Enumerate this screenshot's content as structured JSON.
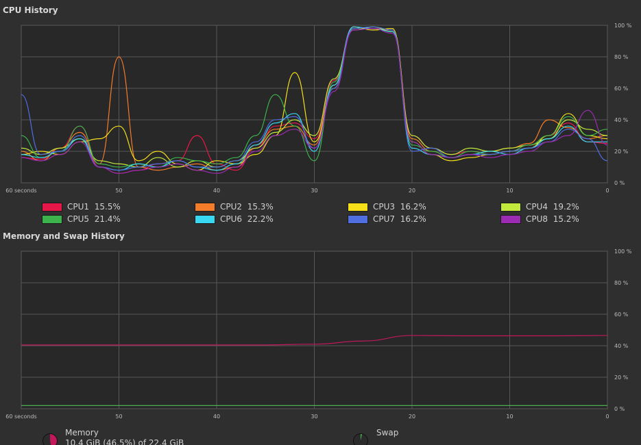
{
  "cpu": {
    "title": "CPU History",
    "x_ticks": [
      "60 seconds",
      "50",
      "40",
      "30",
      "20",
      "10",
      "0"
    ],
    "y_ticks": [
      "100 %",
      "80 %",
      "60 %",
      "40 %",
      "20 %",
      "0 %"
    ],
    "legend": [
      {
        "name": "CPU1",
        "value": "15.5%",
        "color": "#e8174a"
      },
      {
        "name": "CPU2",
        "value": "15.3%",
        "color": "#f57d29"
      },
      {
        "name": "CPU3",
        "value": "16.2%",
        "color": "#f7e01a"
      },
      {
        "name": "CPU4",
        "value": "19.2%",
        "color": "#c2ea3c"
      },
      {
        "name": "CPU5",
        "value": "21.4%",
        "color": "#3cb44b"
      },
      {
        "name": "CPU6",
        "value": "22.2%",
        "color": "#39d8f2"
      },
      {
        "name": "CPU7",
        "value": "16.2%",
        "color": "#4f6ee0"
      },
      {
        "name": "CPU8",
        "value": "15.2%",
        "color": "#9c2bb3"
      }
    ]
  },
  "memory": {
    "title": "Memory and Swap History",
    "x_ticks": [
      "60 seconds",
      "50",
      "40",
      "30",
      "20",
      "10",
      "0"
    ],
    "y_ticks": [
      "100 %",
      "80 %",
      "60 %",
      "40 %",
      "20 %",
      "0 %"
    ],
    "memory_label": "Memory",
    "memory_detail": "10.4 GiB (46.5%) of 22.4 GiB",
    "memory_color": "#c2185b",
    "swap_label": "Swap",
    "swap_color": "#4caf50"
  },
  "chart_data": [
    {
      "type": "line",
      "title": "CPU History",
      "x": [
        60,
        58,
        56,
        54,
        52,
        50,
        48,
        46,
        44,
        42,
        40,
        38,
        36,
        34,
        32,
        30,
        28,
        26,
        24,
        22,
        20,
        18,
        16,
        14,
        12,
        10,
        8,
        6,
        4,
        2,
        0
      ],
      "ylim": [
        0,
        100
      ],
      "xlim": [
        60,
        0
      ],
      "series": [
        {
          "name": "CPU1",
          "values": [
            16,
            15,
            22,
            36,
            10,
            6,
            8,
            12,
            14,
            30,
            12,
            8,
            22,
            36,
            38,
            28,
            65,
            99,
            98,
            97,
            30,
            22,
            18,
            20,
            18,
            20,
            24,
            30,
            38,
            26,
            25
          ]
        },
        {
          "name": "CPU2",
          "values": [
            20,
            14,
            22,
            32,
            12,
            80,
            10,
            8,
            10,
            12,
            8,
            10,
            24,
            34,
            36,
            24,
            62,
            98,
            99,
            96,
            28,
            20,
            16,
            18,
            20,
            22,
            25,
            40,
            35,
            28,
            30
          ]
        },
        {
          "name": "CPU3",
          "values": [
            18,
            20,
            18,
            26,
            28,
            36,
            14,
            20,
            12,
            8,
            14,
            12,
            18,
            30,
            70,
            26,
            60,
            99,
            97,
            98,
            26,
            18,
            14,
            16,
            18,
            20,
            22,
            30,
            44,
            30,
            28
          ]
        },
        {
          "name": "CPU4",
          "values": [
            22,
            18,
            22,
            28,
            14,
            12,
            10,
            16,
            10,
            14,
            10,
            14,
            22,
            32,
            40,
            30,
            66,
            97,
            99,
            96,
            30,
            22,
            18,
            22,
            20,
            22,
            24,
            28,
            40,
            34,
            30
          ]
        },
        {
          "name": "CPU5",
          "values": [
            30,
            16,
            20,
            36,
            12,
            10,
            12,
            10,
            16,
            14,
            12,
            16,
            30,
            56,
            36,
            14,
            64,
            98,
            99,
            97,
            24,
            20,
            16,
            20,
            18,
            20,
            24,
            30,
            42,
            30,
            34
          ]
        },
        {
          "name": "CPU6",
          "values": [
            18,
            16,
            20,
            28,
            10,
            8,
            12,
            10,
            14,
            10,
            8,
            12,
            24,
            38,
            44,
            20,
            62,
            99,
            98,
            96,
            22,
            18,
            16,
            18,
            20,
            18,
            22,
            28,
            36,
            26,
            26
          ]
        },
        {
          "name": "CPU7",
          "values": [
            56,
            18,
            20,
            30,
            10,
            8,
            10,
            12,
            14,
            10,
            10,
            14,
            26,
            40,
            42,
            22,
            60,
            98,
            99,
            97,
            20,
            22,
            16,
            18,
            18,
            20,
            22,
            26,
            34,
            28,
            14
          ]
        },
        {
          "name": "CPU8",
          "values": [
            16,
            14,
            18,
            26,
            10,
            6,
            8,
            10,
            12,
            8,
            6,
            10,
            20,
            30,
            34,
            22,
            58,
            97,
            98,
            95,
            26,
            18,
            16,
            18,
            16,
            18,
            20,
            26,
            30,
            46,
            24
          ]
        }
      ]
    },
    {
      "type": "line",
      "title": "Memory and Swap History",
      "x": [
        60,
        50,
        40,
        35,
        30,
        25,
        20,
        15,
        10,
        5,
        0
      ],
      "ylim": [
        0,
        100
      ],
      "xlim": [
        60,
        0
      ],
      "series": [
        {
          "name": "Memory",
          "values": [
            40.5,
            40.5,
            40.5,
            40.5,
            41,
            43,
            46.5,
            46.3,
            46.3,
            46.3,
            46.5
          ]
        },
        {
          "name": "Swap",
          "values": [
            2,
            2,
            2,
            2,
            2,
            2,
            2,
            2,
            2,
            2,
            2
          ]
        }
      ]
    }
  ]
}
